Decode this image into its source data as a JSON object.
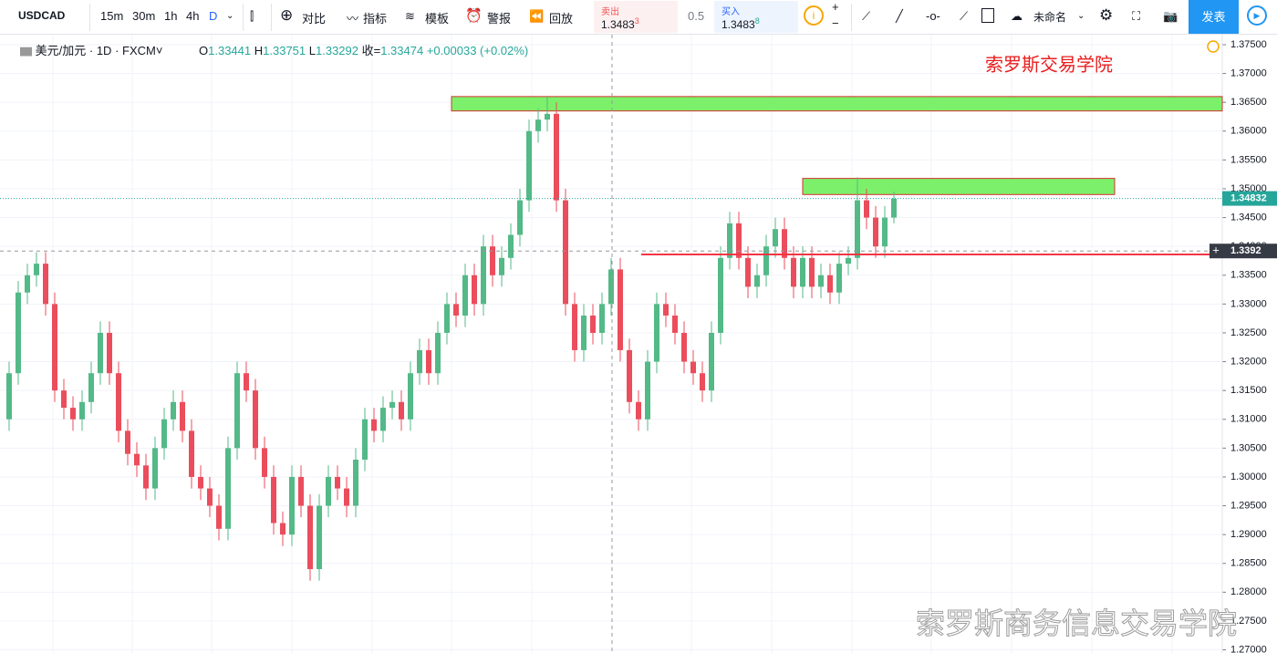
{
  "toolbar": {
    "symbol": "USDCAD",
    "intervals": [
      "15m",
      "30m",
      "1h",
      "4h",
      "D"
    ],
    "buttons": [
      "对比",
      "指标",
      "模板",
      "警报",
      "回放"
    ],
    "sell": {
      "label": "卖出",
      "price": "1.3483",
      "price_sup": "3"
    },
    "spread": "0.5",
    "buy": {
      "label": "买入",
      "price": "1.3483",
      "price_sup": "8"
    },
    "layout_name": "未命名",
    "publish": "发表"
  },
  "chart_data": {
    "type": "candlestick",
    "legend": {
      "description": "美元/加元",
      "interval": "1D",
      "exchange": "FXCM",
      "ohlc": [
        {
          "label": "O",
          "value": "1.33441"
        },
        {
          "label": "H",
          "value": "1.33751"
        },
        {
          "label": "L",
          "value": "1.33292"
        },
        {
          "label": "收=",
          "value": "1.33474"
        }
      ],
      "change": "+0.00033 (+0.02%)"
    },
    "annotation": "索罗斯交易学院",
    "watermark": "索罗斯商务信息交易学院",
    "colors": {
      "up": "#53b987",
      "down": "#eb4d5c",
      "zone": "#7cf06a",
      "support": "#f23645",
      "last": "#26a69a"
    },
    "open": [
      1.31,
      1.318,
      1.332,
      1.335,
      1.337,
      1.33,
      1.315,
      1.312,
      1.31,
      1.313,
      1.318,
      1.325,
      1.318,
      1.308,
      1.304,
      1.302,
      1.298,
      1.305,
      1.31,
      1.313,
      1.308,
      1.3,
      1.298,
      1.295,
      1.291,
      1.305,
      1.318,
      1.315,
      1.305,
      1.3,
      1.292,
      1.29,
      1.3,
      1.295,
      1.284,
      1.295,
      1.3,
      1.298,
      1.295,
      1.303,
      1.31,
      1.308,
      1.312,
      1.313,
      1.31,
      1.318,
      1.322,
      1.318,
      1.325,
      1.33,
      1.328,
      1.335,
      1.33,
      1.34,
      1.335,
      1.338,
      1.342,
      1.348,
      1.36,
      1.362,
      1.363,
      1.348,
      1.33,
      1.322,
      1.328,
      1.325,
      1.33,
      1.336,
      1.322,
      1.313,
      1.31,
      1.32,
      1.33,
      1.328,
      1.325,
      1.32,
      1.318,
      1.315,
      1.325,
      1.338,
      1.344,
      1.338,
      1.333,
      1.335,
      1.34,
      1.343,
      1.338,
      1.333,
      1.338,
      1.333,
      1.335,
      1.332,
      1.337,
      1.338,
      1.348,
      1.345,
      1.34,
      1.345
    ],
    "high": [
      1.32,
      1.334,
      1.337,
      1.339,
      1.339,
      1.332,
      1.317,
      1.314,
      1.315,
      1.32,
      1.327,
      1.327,
      1.32,
      1.31,
      1.306,
      1.304,
      1.307,
      1.312,
      1.315,
      1.315,
      1.31,
      1.302,
      1.3,
      1.297,
      1.307,
      1.32,
      1.32,
      1.317,
      1.307,
      1.302,
      1.294,
      1.302,
      1.302,
      1.297,
      1.297,
      1.302,
      1.302,
      1.3,
      1.305,
      1.312,
      1.312,
      1.314,
      1.315,
      1.315,
      1.32,
      1.324,
      1.324,
      1.327,
      1.332,
      1.332,
      1.337,
      1.337,
      1.342,
      1.342,
      1.34,
      1.344,
      1.35,
      1.362,
      1.364,
      1.366,
      1.365,
      1.35,
      1.332,
      1.33,
      1.33,
      1.332,
      1.338,
      1.338,
      1.324,
      1.315,
      1.322,
      1.332,
      1.332,
      1.33,
      1.327,
      1.322,
      1.32,
      1.327,
      1.34,
      1.346,
      1.346,
      1.34,
      1.337,
      1.342,
      1.345,
      1.345,
      1.34,
      1.34,
      1.34,
      1.337,
      1.337,
      1.339,
      1.34,
      1.352,
      1.35,
      1.347,
      1.347,
      1.3495
    ],
    "low": [
      1.308,
      1.316,
      1.33,
      1.333,
      1.328,
      1.313,
      1.31,
      1.308,
      1.308,
      1.311,
      1.316,
      1.316,
      1.306,
      1.302,
      1.3,
      1.296,
      1.296,
      1.303,
      1.308,
      1.306,
      1.298,
      1.296,
      1.293,
      1.289,
      1.289,
      1.303,
      1.313,
      1.303,
      1.298,
      1.29,
      1.288,
      1.288,
      1.293,
      1.282,
      1.282,
      1.293,
      1.296,
      1.293,
      1.293,
      1.301,
      1.306,
      1.306,
      1.31,
      1.308,
      1.308,
      1.316,
      1.316,
      1.316,
      1.323,
      1.326,
      1.326,
      1.328,
      1.328,
      1.333,
      1.333,
      1.336,
      1.34,
      1.346,
      1.358,
      1.36,
      1.346,
      1.328,
      1.32,
      1.32,
      1.323,
      1.323,
      1.328,
      1.32,
      1.311,
      1.308,
      1.308,
      1.318,
      1.326,
      1.323,
      1.318,
      1.316,
      1.313,
      1.313,
      1.323,
      1.336,
      1.336,
      1.331,
      1.331,
      1.333,
      1.338,
      1.336,
      1.331,
      1.331,
      1.331,
      1.331,
      1.33,
      1.33,
      1.335,
      1.336,
      1.343,
      1.338,
      1.338,
      1.344
    ],
    "close": [
      1.318,
      1.332,
      1.335,
      1.337,
      1.33,
      1.315,
      1.312,
      1.31,
      1.313,
      1.318,
      1.325,
      1.318,
      1.308,
      1.304,
      1.302,
      1.298,
      1.305,
      1.31,
      1.313,
      1.308,
      1.3,
      1.298,
      1.295,
      1.291,
      1.305,
      1.318,
      1.315,
      1.305,
      1.3,
      1.292,
      1.29,
      1.3,
      1.295,
      1.284,
      1.295,
      1.3,
      1.298,
      1.295,
      1.303,
      1.31,
      1.308,
      1.312,
      1.313,
      1.31,
      1.318,
      1.322,
      1.318,
      1.325,
      1.33,
      1.328,
      1.335,
      1.33,
      1.34,
      1.335,
      1.338,
      1.342,
      1.348,
      1.36,
      1.362,
      1.363,
      1.348,
      1.33,
      1.322,
      1.328,
      1.325,
      1.33,
      1.336,
      1.322,
      1.313,
      1.31,
      1.32,
      1.33,
      1.328,
      1.325,
      1.32,
      1.318,
      1.315,
      1.325,
      1.338,
      1.344,
      1.338,
      1.333,
      1.335,
      1.34,
      1.343,
      1.338,
      1.333,
      1.338,
      1.333,
      1.335,
      1.332,
      1.337,
      1.338,
      1.348,
      1.345,
      1.34,
      1.345,
      1.3483
    ],
    "zones": [
      {
        "top": 1.366,
        "bottom": 1.3635
      },
      {
        "top": 1.3518,
        "bottom": 1.349
      }
    ],
    "support": 1.3386,
    "last_price": 1.34832,
    "crosshair_price": 1.3392,
    "ylim": [
      1.26945,
      1.37674
    ],
    "yticks": [
      {
        "value": 1.375,
        "label": "1.37500"
      },
      {
        "value": 1.37,
        "label": "1.37000"
      },
      {
        "value": 1.365,
        "label": "1.36500"
      },
      {
        "value": 1.36,
        "label": "1.36000"
      },
      {
        "value": 1.355,
        "label": "1.35500"
      },
      {
        "value": 1.35,
        "label": "1.35000"
      },
      {
        "value": 1.345,
        "label": "1.34500"
      },
      {
        "value": 1.34,
        "label": "1.34000"
      },
      {
        "value": 1.335,
        "label": "1.33500"
      },
      {
        "value": 1.33,
        "label": "1.33000"
      },
      {
        "value": 1.325,
        "label": "1.32500"
      },
      {
        "value": 1.32,
        "label": "1.32000"
      },
      {
        "value": 1.315,
        "label": "1.31500"
      },
      {
        "value": 1.31,
        "label": "1.31000"
      },
      {
        "value": 1.305,
        "label": "1.30500"
      },
      {
        "value": 1.3,
        "label": "1.30000"
      },
      {
        "value": 1.295,
        "label": "1.29500"
      },
      {
        "value": 1.29,
        "label": "1.29000"
      },
      {
        "value": 1.285,
        "label": "1.28500"
      },
      {
        "value": 1.28,
        "label": "1.28000"
      },
      {
        "value": 1.275,
        "label": "1.27500"
      },
      {
        "value": 1.27,
        "label": "1.27000"
      }
    ],
    "grid": true
  }
}
